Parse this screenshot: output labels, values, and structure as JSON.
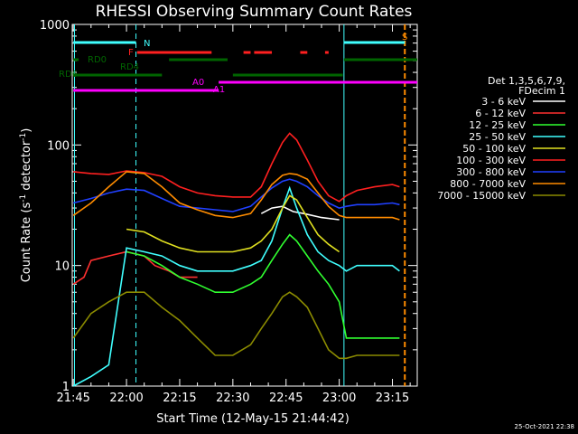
{
  "chart_data": {
    "type": "line",
    "title": "RHESSI Observing Summary Count Rates",
    "xlabel": "Start Time (12-May-15 21:44:42)",
    "ylabel_main": "Count Rate (s",
    "ylabel_sup1": "-1",
    "ylabel_mid": " detector",
    "ylabel_sup2": "-1",
    "ylabel_end": ")",
    "y_scale": "log",
    "ylim": [
      1,
      1000
    ],
    "xlim": [
      "21:44:42",
      "23:22:00"
    ],
    "x_tick_labels": [
      "21:45",
      "22:00",
      "22:15",
      "22:30",
      "22:45",
      "23:00",
      "23:15"
    ],
    "y_tick_labels": [
      "1",
      "10",
      "100",
      "1000"
    ],
    "legend_title": [
      "Det 1,3,5,6,7,9,",
      "FDecim 1"
    ],
    "series": [
      {
        "name": "3 - 6 keV",
        "color": "#ffffff",
        "x": [
          "21:45",
          "21:50",
          "21:55",
          "22:00",
          "22:05",
          "22:10",
          "22:14",
          "22:20",
          "22:25",
          "22:30",
          "22:35",
          "22:38",
          "22:41",
          "22:44",
          "22:47",
          "22:50",
          "22:55",
          "23:00",
          "23:02",
          "23:05",
          "23:10",
          "23:15",
          "23:17"
        ],
        "y": [
          null,
          null,
          null,
          null,
          null,
          null,
          null,
          null,
          null,
          null,
          null,
          27,
          30,
          31,
          28,
          27,
          25,
          24,
          null,
          null,
          null,
          null,
          null
        ]
      },
      {
        "name": "6 - 12 keV",
        "color": "#ff3030",
        "x": [
          "21:45",
          "21:48",
          "21:50",
          "21:55",
          "22:00",
          "22:05",
          "22:08",
          "22:12",
          "22:15",
          "22:20",
          "22:25",
          "22:30",
          "22:33",
          "22:36",
          "22:39",
          "22:42",
          "22:44",
          "22:46",
          "22:48",
          "22:50",
          "22:53",
          "22:56",
          "22:59",
          "23:01",
          "23:05",
          "23:10",
          "23:15",
          "23:17"
        ],
        "y": [
          7,
          8,
          11,
          12,
          13,
          12,
          10,
          9,
          8,
          8,
          null,
          null,
          null,
          null,
          null,
          null,
          null,
          null,
          null,
          null,
          null,
          null,
          null,
          null,
          null,
          null,
          null,
          null
        ]
      },
      {
        "name": "12 - 25 keV",
        "color": "#30ff30",
        "x": [
          "21:45",
          "21:50",
          "21:55",
          "22:00",
          "22:05",
          "22:10",
          "22:15",
          "22:20",
          "22:25",
          "22:30",
          "22:35",
          "22:38",
          "22:41",
          "22:44",
          "22:46",
          "22:48",
          "22:51",
          "22:54",
          "22:57",
          "23:00",
          "23:02",
          "23:05",
          "23:10",
          "23:15",
          "23:17"
        ],
        "y": [
          null,
          null,
          null,
          13,
          12,
          10,
          8,
          7,
          6,
          6,
          7,
          8,
          11,
          15,
          18,
          16,
          12,
          9,
          7,
          5,
          2.5,
          2.5,
          2.5,
          2.5,
          2.5
        ]
      },
      {
        "name": "25 - 50 keV",
        "color": "#40ffff",
        "x": [
          "21:45",
          "21:50",
          "21:55",
          "22:00",
          "22:05",
          "22:10",
          "22:15",
          "22:20",
          "22:25",
          "22:30",
          "22:35",
          "22:38",
          "22:41",
          "22:44",
          "22:46",
          "22:48",
          "22:51",
          "22:54",
          "22:57",
          "23:00",
          "23:02",
          "23:05",
          "23:10",
          "23:15",
          "23:17"
        ],
        "y": [
          1,
          1.2,
          1.5,
          14,
          13,
          12,
          10,
          9,
          9,
          9,
          10,
          11,
          16,
          30,
          44,
          30,
          18,
          13,
          11,
          10,
          9,
          10,
          10,
          10,
          9
        ]
      },
      {
        "name": "50 - 100 keV",
        "color": "#e0e020",
        "x": [
          "21:45",
          "21:50",
          "21:55",
          "22:00",
          "22:05",
          "22:10",
          "22:15",
          "22:20",
          "22:25",
          "22:30",
          "22:35",
          "22:38",
          "22:41",
          "22:44",
          "22:46",
          "22:48",
          "22:51",
          "22:54",
          "22:57",
          "23:00",
          "23:02",
          "23:05",
          "23:10",
          "23:15",
          "23:17"
        ],
        "y": [
          null,
          null,
          null,
          20,
          19,
          16,
          14,
          13,
          13,
          13,
          14,
          16,
          20,
          30,
          38,
          35,
          25,
          18,
          15,
          13,
          null,
          null,
          null,
          null,
          null
        ]
      },
      {
        "name": "100 - 300 keV",
        "color": "#ff2020",
        "x": [
          "21:45",
          "21:50",
          "21:55",
          "22:00",
          "22:05",
          "22:10",
          "22:15",
          "22:20",
          "22:25",
          "22:30",
          "22:35",
          "22:38",
          "22:41",
          "22:44",
          "22:46",
          "22:48",
          "22:51",
          "22:54",
          "22:57",
          "23:00",
          "23:02",
          "23:05",
          "23:10",
          "23:15",
          "23:17"
        ],
        "y": [
          60,
          58,
          57,
          61,
          59,
          55,
          45,
          40,
          38,
          37,
          37,
          45,
          70,
          105,
          125,
          110,
          75,
          50,
          38,
          34,
          38,
          42,
          45,
          47,
          45
        ]
      },
      {
        "name": "300 - 800 keV",
        "color": "#2040ff",
        "x": [
          "21:45",
          "21:50",
          "21:55",
          "22:00",
          "22:05",
          "22:10",
          "22:15",
          "22:20",
          "22:25",
          "22:30",
          "22:35",
          "22:38",
          "22:41",
          "22:44",
          "22:46",
          "22:48",
          "22:51",
          "22:54",
          "22:57",
          "23:00",
          "23:02",
          "23:05",
          "23:10",
          "23:15",
          "23:17"
        ],
        "y": [
          33,
          36,
          40,
          43,
          42,
          36,
          31,
          30,
          29,
          28,
          31,
          37,
          44,
          50,
          52,
          50,
          45,
          38,
          33,
          30,
          31,
          32,
          32,
          33,
          32
        ]
      },
      {
        "name": "800 - 7000 keV",
        "color": "#ff8c00",
        "x": [
          "21:45",
          "21:50",
          "21:55",
          "22:00",
          "22:05",
          "22:10",
          "22:15",
          "22:20",
          "22:25",
          "22:30",
          "22:35",
          "22:38",
          "22:41",
          "22:44",
          "22:46",
          "22:48",
          "22:51",
          "22:54",
          "22:57",
          "23:00",
          "23:02",
          "23:05",
          "23:10",
          "23:15",
          "23:17"
        ],
        "y": [
          26,
          33,
          45,
          60,
          58,
          45,
          33,
          29,
          26,
          25,
          27,
          35,
          47,
          56,
          58,
          57,
          52,
          40,
          31,
          26,
          25,
          25,
          25,
          25,
          24
        ]
      },
      {
        "name": "7000 - 15000 keV",
        "color": "#8b8b00",
        "x": [
          "21:45",
          "21:50",
          "21:55",
          "22:00",
          "22:05",
          "22:10",
          "22:15",
          "22:20",
          "22:25",
          "22:30",
          "22:35",
          "22:38",
          "22:41",
          "22:44",
          "22:46",
          "22:48",
          "22:51",
          "22:54",
          "22:57",
          "23:00",
          "23:02",
          "23:05",
          "23:10",
          "23:15",
          "23:17"
        ],
        "y": [
          2.5,
          4,
          5,
          6,
          6,
          4.5,
          3.5,
          2.5,
          1.8,
          1.8,
          2.2,
          3,
          4,
          5.5,
          6,
          5.5,
          4.5,
          3,
          2,
          1.7,
          1.7,
          1.8,
          1.8,
          1.8,
          1.8
        ]
      }
    ],
    "annotations": {
      "N": "N",
      "F": "F",
      "S": "S",
      "RD0": "RD0",
      "RD4": "RD4",
      "RD6": "RD6",
      "A0": "A0",
      "A1": "A1"
    },
    "flag_colors": {
      "N": "#40ffff",
      "F": "#ff2020",
      "S": "#ff8c00",
      "RD": "#006400",
      "A": "#ff00ff"
    },
    "footer_date": "25-Oct-2021 22:38"
  }
}
